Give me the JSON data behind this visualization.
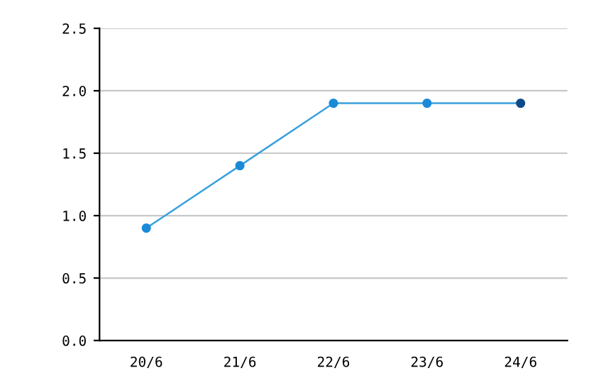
{
  "chart_data": {
    "type": "line",
    "categories": [
      "20/6",
      "21/6",
      "22/6",
      "23/6",
      "24/6"
    ],
    "series": [
      {
        "color": "#3aa0dc",
        "colors": [
          "#1a8ad8",
          "#1a8ad8",
          "#1a8ad8",
          "#1a8ad8",
          "#0d4a8a"
        ],
        "values": [
          0.9,
          1.4,
          1.9,
          1.9,
          1.9
        ]
      }
    ],
    "ylim": [
      0,
      2.5
    ],
    "yticks": [
      {
        "value": 0,
        "label": "0.0"
      },
      {
        "value": 0.5,
        "label": "0.5"
      },
      {
        "value": 1,
        "label": "1.0"
      },
      {
        "value": 1.5,
        "label": "1.5"
      },
      {
        "value": 2,
        "label": "2.0"
      },
      {
        "value": 2.5,
        "label": "2.5"
      }
    ],
    "grid": "y",
    "marker": "circle",
    "line_style": "solid"
  }
}
